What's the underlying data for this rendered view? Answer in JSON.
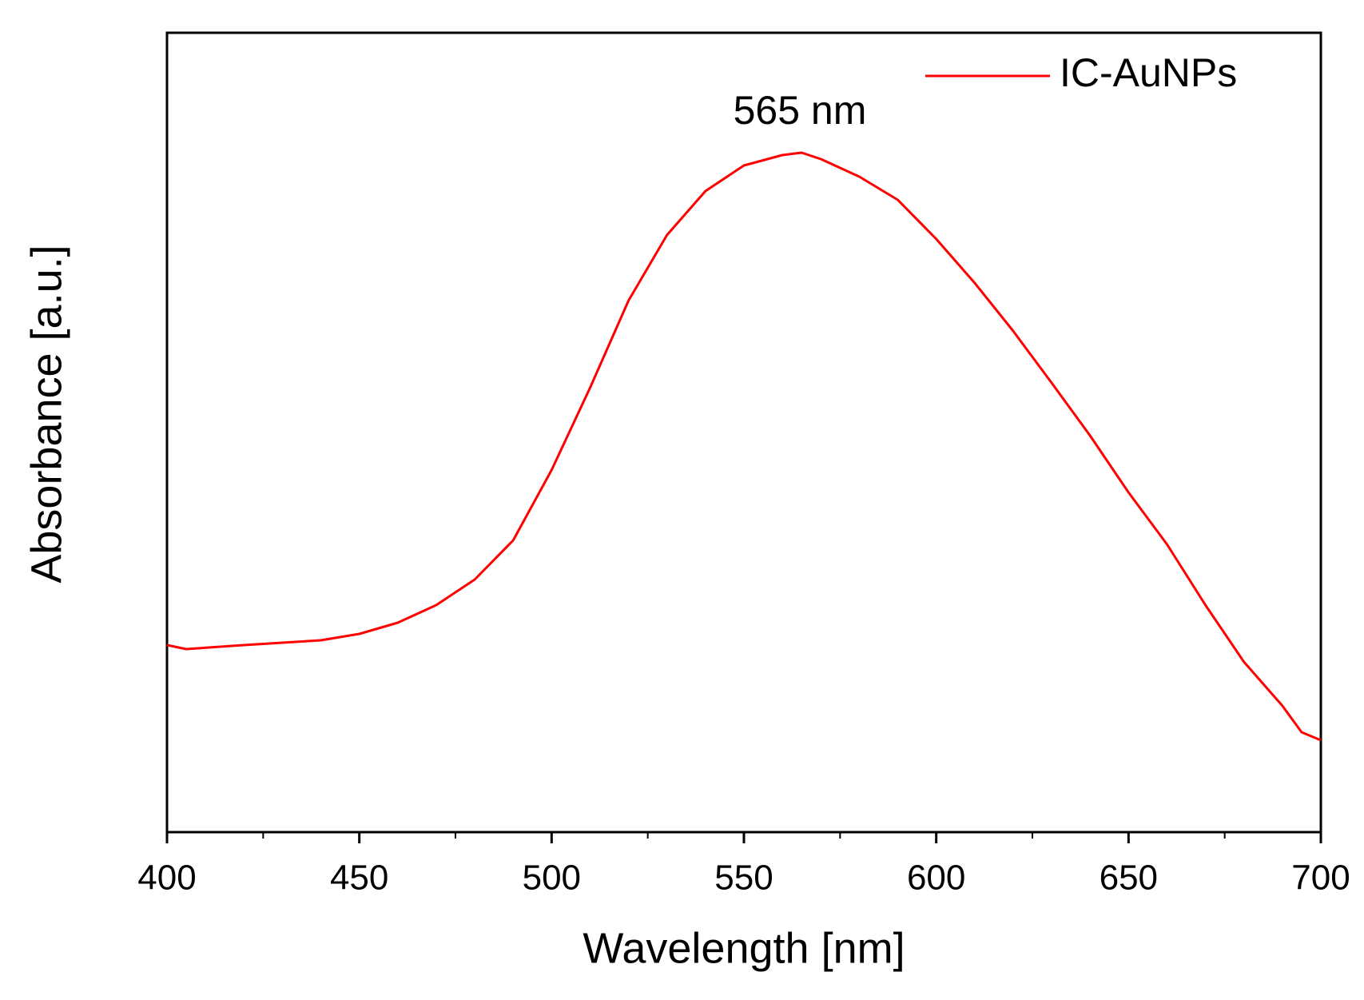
{
  "chart_data": {
    "type": "line",
    "xlabel": "Wavelength [nm]",
    "ylabel": "Absorbance [a.u.]",
    "annotation": "565 nm",
    "x": [
      400,
      405,
      420,
      440,
      450,
      460,
      470,
      480,
      490,
      500,
      510,
      520,
      530,
      540,
      550,
      560,
      565,
      570,
      580,
      590,
      600,
      610,
      620,
      630,
      640,
      650,
      660,
      670,
      680,
      690,
      695,
      700
    ],
    "series": [
      {
        "name": "IC-AuNPs",
        "color": "#ff0000",
        "values": [
          0.234,
          0.229,
          0.234,
          0.24,
          0.248,
          0.262,
          0.284,
          0.316,
          0.365,
          0.453,
          0.556,
          0.665,
          0.747,
          0.802,
          0.834,
          0.847,
          0.85,
          0.842,
          0.82,
          0.791,
          0.742,
          0.687,
          0.627,
          0.562,
          0.496,
          0.425,
          0.36,
          0.284,
          0.213,
          0.158,
          0.125,
          0.115
        ]
      }
    ],
    "xlim": [
      400,
      700
    ],
    "xticks": [
      400,
      450,
      500,
      550,
      600,
      650,
      700
    ],
    "xminorticks": [
      425,
      475,
      525,
      575,
      625,
      675
    ],
    "ylim": [
      0,
      1
    ],
    "legend": "upper right",
    "grid": false
  }
}
